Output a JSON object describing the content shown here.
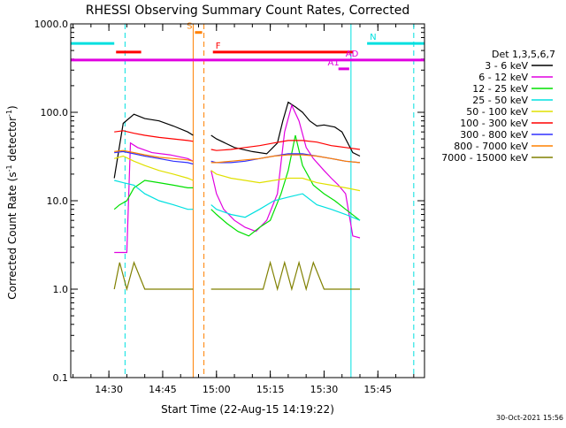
{
  "chart_data": {
    "type": "line",
    "title": "RHESSI Observing Summary Count Rates, Corrected",
    "xlabel": "Start Time (22-Aug-15 14:19:22)",
    "ylabel_main": "Corrected Count Rate (s",
    "ylabel_sup1": "-1",
    "ylabel_mid": " detector",
    "ylabel_sup2": "-1",
    "ylabel_end": ")",
    "ylim": [
      0.1,
      1000
    ],
    "y_scale": "log",
    "xlim": [
      "14:19:22",
      "15:58:00"
    ],
    "y_ticks": [
      "0.1",
      "1.0",
      "10.0",
      "100.0",
      "1000.0"
    ],
    "x_ticks": [
      "14:30",
      "14:45",
      "15:00",
      "15:15",
      "15:30",
      "15:45"
    ],
    "legend_title": "Det 1,3,5,6,7",
    "legend_position": "right",
    "date_stamp": "30-Oct-2021 15:56",
    "series": [
      {
        "name": "3 - 6 keV",
        "color": "#000000",
        "segments": [
          {
            "x": [
              "14:31:30",
              "14:34:00",
              "14:37:00",
              "14:40:00",
              "14:44:00",
              "14:48:00",
              "14:52:00",
              "14:53:30"
            ],
            "y": [
              18,
              75,
              95,
              85,
              80,
              70,
              60,
              55
            ]
          },
          {
            "x": [
              "14:58:30",
              "15:00:00",
              "15:05:00",
              "15:10:00",
              "15:14:00",
              "15:17:00",
              "15:18:30",
              "15:20:00",
              "15:22:00",
              "15:24:00",
              "15:26:00",
              "15:28:00",
              "15:30:00",
              "15:33:00",
              "15:35:00",
              "15:38:00",
              "15:40:00"
            ],
            "y": [
              55,
              50,
              40,
              36,
              34,
              45,
              80,
              130,
              115,
              100,
              80,
              70,
              72,
              68,
              60,
              35,
              32
            ]
          }
        ]
      },
      {
        "name": "6 - 12 keV",
        "color": "#e000e0",
        "segments": [
          {
            "x": [
              "14:31:30",
              "14:34:00",
              "14:35:00",
              "14:36:00",
              "14:38:00",
              "14:42:00",
              "14:47:00",
              "14:52:00",
              "14:53:30"
            ],
            "y": [
              2.6,
              2.6,
              2.6,
              45,
              40,
              35,
              33,
              30,
              28
            ]
          },
          {
            "x": [
              "14:58:30",
              "15:00:00",
              "15:02:00",
              "15:05:00",
              "15:08:00",
              "15:11:00",
              "15:14:00",
              "15:17:00",
              "15:19:00",
              "15:21:00",
              "15:23:00",
              "15:25:00",
              "15:27:00",
              "15:30:00",
              "15:32:00",
              "15:34:00",
              "15:36:00",
              "15:38:00",
              "15:40:00"
            ],
            "y": [
              22,
              12,
              8,
              6,
              5,
              4.5,
              6,
              12,
              60,
              120,
              80,
              40,
              30,
              22,
              18,
              15,
              12,
              4,
              3.8
            ]
          }
        ]
      },
      {
        "name": "12 - 25 keV",
        "color": "#00e000",
        "segments": [
          {
            "x": [
              "14:31:30",
              "14:33:00",
              "14:35:00",
              "14:37:00",
              "14:40:00",
              "14:44:00",
              "14:48:00",
              "14:52:00",
              "14:53:30"
            ],
            "y": [
              8,
              9,
              10,
              14,
              17,
              16,
              15,
              14,
              14
            ]
          },
          {
            "x": [
              "14:58:30",
              "15:00:00",
              "15:03:00",
              "15:06:00",
              "15:09:00",
              "15:12:00",
              "15:15:00",
              "15:18:00",
              "15:20:00",
              "15:22:00",
              "15:24:00",
              "15:27:00",
              "15:30:00",
              "15:33:00",
              "15:36:00",
              "15:40:00"
            ],
            "y": [
              8,
              7,
              5.5,
              4.5,
              4,
              5,
              6,
              12,
              22,
              55,
              25,
              15,
              12,
              10,
              8,
              6
            ]
          }
        ]
      },
      {
        "name": "25 - 50 keV",
        "color": "#00e0e0",
        "segments": [
          {
            "x": [
              "14:31:30",
              "14:34:00",
              "14:37:00",
              "14:40:00",
              "14:44:00",
              "14:48:00",
              "14:52:00",
              "14:53:30"
            ],
            "y": [
              17,
              16,
              15,
              12,
              10,
              9,
              8,
              8
            ]
          },
          {
            "x": [
              "14:58:30",
              "15:00:00",
              "15:04:00",
              "15:08:00",
              "15:12:00",
              "15:16:00",
              "15:20:00",
              "15:24:00",
              "15:28:00",
              "15:32:00",
              "15:36:00",
              "15:40:00"
            ],
            "y": [
              9,
              8,
              7,
              6.5,
              8,
              10,
              11,
              12,
              9,
              8,
              7,
              6
            ]
          }
        ]
      },
      {
        "name": "50 - 100 keV",
        "color": "#e0e000",
        "segments": [
          {
            "x": [
              "14:31:30",
              "14:34:00",
              "14:37:00",
              "14:40:00",
              "14:44:00",
              "14:48:00",
              "14:52:00",
              "14:53:30"
            ],
            "y": [
              30,
              32,
              28,
              25,
              22,
              20,
              18,
              17
            ]
          },
          {
            "x": [
              "14:58:30",
              "15:00:00",
              "15:04:00",
              "15:08:00",
              "15:12:00",
              "15:16:00",
              "15:20:00",
              "15:24:00",
              "15:28:00",
              "15:32:00",
              "15:36:00",
              "15:40:00"
            ],
            "y": [
              22,
              20,
              18,
              17,
              16,
              17,
              18,
              18,
              16,
              15,
              14,
              13
            ]
          }
        ]
      },
      {
        "name": "100 - 300 keV",
        "color": "#ff0000",
        "segments": [
          {
            "x": [
              "14:31:30",
              "14:34:00",
              "14:37:00",
              "14:40:00",
              "14:44:00",
              "14:48:00",
              "14:52:00",
              "14:53:30"
            ],
            "y": [
              60,
              62,
              58,
              55,
              52,
              50,
              48,
              47
            ]
          },
          {
            "x": [
              "14:58:30",
              "15:00:00",
              "15:04:00",
              "15:08:00",
              "15:12:00",
              "15:16:00",
              "15:20:00",
              "15:24:00",
              "15:28:00",
              "15:32:00",
              "15:36:00",
              "15:40:00"
            ],
            "y": [
              38,
              37,
              38,
              40,
              42,
              45,
              48,
              48,
              46,
              42,
              40,
              38
            ]
          }
        ]
      },
      {
        "name": "300 - 800 keV",
        "color": "#3030ff",
        "segments": [
          {
            "x": [
              "14:31:30",
              "14:34:00",
              "14:37:00",
              "14:40:00",
              "14:44:00",
              "14:48:00",
              "14:52:00",
              "14:53:30"
            ],
            "y": [
              35,
              36,
              34,
              32,
              30,
              28,
              27,
              26
            ]
          },
          {
            "x": [
              "14:58:30",
              "15:00:00",
              "15:04:00",
              "15:08:00",
              "15:12:00",
              "15:16:00",
              "15:20:00",
              "15:24:00",
              "15:28:00",
              "15:32:00",
              "15:36:00",
              "15:40:00"
            ],
            "y": [
              28,
              27,
              27,
              28,
              30,
              32,
              34,
              34,
              32,
              30,
              28,
              27
            ]
          }
        ]
      },
      {
        "name": "800 - 7000 keV",
        "color": "#ff8000",
        "segments": [
          {
            "x": [
              "14:31:30",
              "14:34:00",
              "14:37:00",
              "14:40:00",
              "14:44:00",
              "14:48:00",
              "14:52:00",
              "14:53:30"
            ],
            "y": [
              36,
              37,
              35,
              33,
              31,
              30,
              29,
              28
            ]
          },
          {
            "x": [
              "14:58:30",
              "15:00:00",
              "15:04:00",
              "15:08:00",
              "15:12:00",
              "15:16:00",
              "15:20:00",
              "15:24:00",
              "15:28:00",
              "15:32:00",
              "15:36:00",
              "15:40:00"
            ],
            "y": [
              27,
              27,
              28,
              29,
              30,
              32,
              33,
              33,
              32,
              30,
              28,
              27
            ]
          }
        ]
      },
      {
        "name": "7000 - 15000 keV",
        "color": "#808000",
        "segments": [
          {
            "x": [
              "14:31:30",
              "14:33:00",
              "14:35:00",
              "14:37:00",
              "14:40:00",
              "14:44:00",
              "14:48:00",
              "14:52:00",
              "14:53:30"
            ],
            "y": [
              1,
              2,
              1,
              2,
              1,
              1,
              1,
              1,
              1
            ]
          },
          {
            "x": [
              "14:58:30",
              "15:05:00",
              "15:10:00",
              "15:13:00",
              "15:15:00",
              "15:17:00",
              "15:19:00",
              "15:21:00",
              "15:23:00",
              "15:25:00",
              "15:27:00",
              "15:30:00",
              "15:35:00",
              "15:40:00"
            ],
            "y": [
              1,
              1,
              1,
              1,
              2,
              1,
              2,
              1,
              2,
              1,
              2,
              1,
              1,
              1
            ]
          }
        ]
      }
    ],
    "flags": [
      {
        "label": "N",
        "color": "#00e0e0",
        "level": 600,
        "segments": [
          [
            "14:19:22",
            "14:31:30"
          ],
          [
            "15:42:00",
            "15:58:00"
          ]
        ]
      },
      {
        "label": "F",
        "color": "#ff0000",
        "level": 480,
        "segments": [
          [
            "14:32:00",
            "14:39:00"
          ],
          [
            "14:59:00",
            "15:38:00"
          ]
        ]
      },
      {
        "label": "S",
        "color": "#ff8000",
        "level": 800,
        "segments": [
          [
            "14:54:00",
            "14:56:00"
          ]
        ]
      },
      {
        "label": "AD",
        "color": "#e000e0",
        "level": 390,
        "segments": [
          [
            "14:19:22",
            "15:58:00"
          ]
        ]
      },
      {
        "label": "A1",
        "color": "#e000e0",
        "level": 310,
        "segments": [
          [
            "15:34:00",
            "15:37:00"
          ]
        ]
      }
    ],
    "vertical_lines": [
      {
        "x": "14:19:22",
        "color": "#00e0e0",
        "style": "solid"
      },
      {
        "x": "14:34:30",
        "color": "#00e0e0",
        "style": "dashed"
      },
      {
        "x": "14:53:30",
        "color": "#ff8000",
        "style": "solid"
      },
      {
        "x": "14:56:30",
        "color": "#ff8000",
        "style": "dashed"
      },
      {
        "x": "15:37:30",
        "color": "#00e0e0",
        "style": "solid"
      },
      {
        "x": "15:55:00",
        "color": "#00e0e0",
        "style": "dashed"
      }
    ]
  }
}
